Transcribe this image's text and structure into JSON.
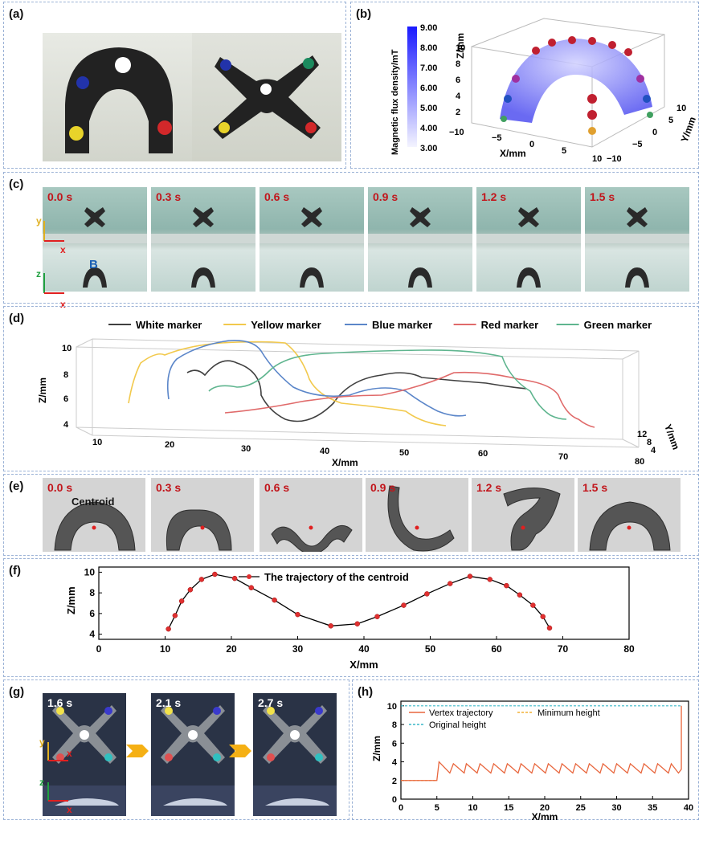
{
  "labels": {
    "a": "(a)",
    "b": "(b)",
    "c": "(c)",
    "d": "(d)",
    "e": "(e)",
    "f": "(f)",
    "g": "(g)",
    "h": "(h)"
  },
  "panel_b": {
    "colorbar_label": "Magnetic flux density/mT",
    "colorbar_ticks": [
      "9.00",
      "8.00",
      "7.00",
      "6.00",
      "5.00",
      "4.00",
      "3.00"
    ],
    "zlabel": "Z/mm",
    "xlabel": "X/mm",
    "ylabel": "Y/mm",
    "zticks": [
      "2",
      "4",
      "6",
      "8",
      "10"
    ],
    "xticks": [
      "−10",
      "−5",
      "0",
      "5",
      "10"
    ],
    "yticks": [
      "−10",
      "−5",
      "0",
      "5",
      "10"
    ],
    "colors": {
      "colorbar_top": "#1a1aff",
      "colorbar_bottom": "#f4f4ff"
    }
  },
  "panel_c": {
    "times": [
      "0.0 s",
      "0.3 s",
      "0.6 s",
      "0.9 s",
      "1.2 s",
      "1.5 s"
    ],
    "axis_y": "y",
    "axis_x": "x",
    "axis_z": "z",
    "axis_x2": "x",
    "field_label": "B"
  },
  "panel_d": {
    "ylabel": "Z/mm",
    "xlabel": "X/mm",
    "y2label": "Y/mm",
    "zticks": [
      "4",
      "6",
      "8",
      "10"
    ],
    "xticks": [
      "10",
      "20",
      "30",
      "40",
      "50",
      "60",
      "70",
      "80"
    ],
    "yticks": [
      "4",
      "8",
      "12"
    ],
    "legend": [
      {
        "name": "White marker",
        "color": "#404040"
      },
      {
        "name": "Yellow marker",
        "color": "#f2c94c"
      },
      {
        "name": "Blue marker",
        "color": "#5b86c9"
      },
      {
        "name": "Red marker",
        "color": "#e06a6a"
      },
      {
        "name": "Green marker",
        "color": "#5fb58f"
      }
    ]
  },
  "panel_e": {
    "times": [
      "0.0 s",
      "0.3 s",
      "0.6 s",
      "0.9 s",
      "1.2 s",
      "1.5 s"
    ],
    "centroid_label": "Centroid"
  },
  "chart_data": [
    {
      "type": "line",
      "legend": "The trajectory of the centroid",
      "xlabel": "X/mm",
      "ylabel": "Z/mm",
      "xlim": [
        0,
        80
      ],
      "ylim": [
        3.5,
        10.5
      ],
      "xticks": [
        0,
        10,
        20,
        30,
        40,
        50,
        60,
        70,
        80
      ],
      "yticks": [
        4,
        6,
        8,
        10
      ],
      "line_color": "#000000",
      "marker_color": "#e03030",
      "x": [
        10.5,
        11.5,
        12.5,
        13.8,
        15.5,
        17.5,
        20.5,
        23,
        26.5,
        30,
        35,
        39,
        42,
        46,
        49.5,
        53,
        56,
        59,
        61.5,
        63.5,
        65.5,
        67,
        68
      ],
      "y": [
        4.5,
        5.8,
        7.2,
        8.3,
        9.3,
        9.8,
        9.4,
        8.5,
        7.3,
        5.9,
        4.8,
        5.0,
        5.7,
        6.8,
        7.9,
        8.9,
        9.6,
        9.3,
        8.7,
        7.8,
        6.8,
        5.7,
        4.6
      ]
    },
    {
      "type": "line",
      "xlabel": "X/mm",
      "ylabel": "Z/mm",
      "xlim": [
        0,
        40
      ],
      "ylim": [
        0,
        10.5
      ],
      "xticks": [
        0,
        5,
        10,
        15,
        20,
        25,
        30,
        35,
        40
      ],
      "yticks": [
        0,
        2,
        4,
        6,
        8,
        10
      ],
      "series": [
        {
          "name": "Vertex trajectory",
          "color": "#e8663d"
        },
        {
          "name": "Minimum height",
          "color": "#f2b134",
          "y": 2
        },
        {
          "name": "Original height",
          "color": "#3bb8c9",
          "y": 10
        }
      ],
      "vertex_x": [
        0,
        5,
        5.3,
        6.8,
        7.3,
        8.8,
        9.1,
        10.6,
        11,
        12.5,
        12.9,
        14.4,
        14.8,
        16.3,
        16.7,
        18.2,
        18.6,
        20.1,
        20.5,
        22,
        22.4,
        23.9,
        24.3,
        25.8,
        26.2,
        27.7,
        28.1,
        29.6,
        30,
        31.5,
        31.9,
        33.4,
        33.8,
        35.3,
        35.7,
        37.2,
        37.6,
        38.6,
        39,
        39
      ],
      "vertex_y": [
        2,
        2,
        4,
        2.8,
        3.8,
        2.8,
        3.8,
        2.8,
        3.8,
        2.8,
        3.8,
        2.8,
        3.8,
        2.8,
        3.8,
        2.8,
        3.8,
        2.8,
        3.8,
        2.8,
        3.8,
        2.8,
        3.8,
        2.8,
        3.8,
        2.8,
        3.8,
        2.8,
        3.8,
        2.8,
        3.8,
        2.8,
        3.8,
        2.8,
        3.8,
        2.8,
        3.8,
        2.8,
        3.2,
        10
      ]
    }
  ],
  "panel_g": {
    "times": [
      "1.6 s",
      "2.1 s",
      "2.7 s"
    ],
    "axis_y": "y",
    "axis_x": "x",
    "axis_z": "z",
    "axis_x2": "x"
  }
}
